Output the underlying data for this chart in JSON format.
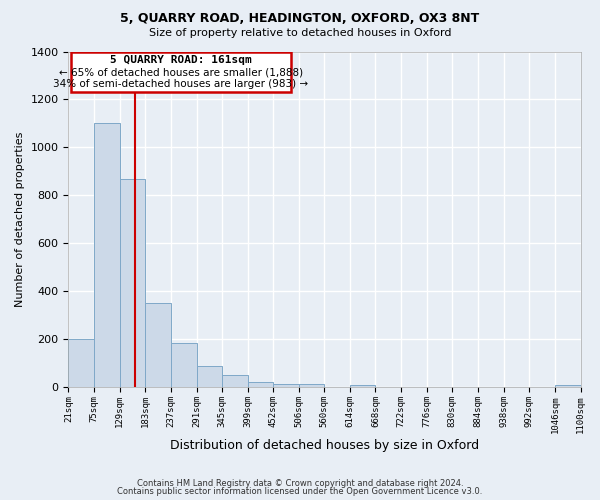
{
  "title1": "5, QUARRY ROAD, HEADINGTON, OXFORD, OX3 8NT",
  "title2": "Size of property relative to detached houses in Oxford",
  "xlabel": "Distribution of detached houses by size in Oxford",
  "ylabel": "Number of detached properties",
  "footer1": "Contains HM Land Registry data © Crown copyright and database right 2024.",
  "footer2": "Contains public sector information licensed under the Open Government Licence v3.0.",
  "bin_edges": [
    21,
    75,
    129,
    183,
    237,
    291,
    345,
    399,
    452,
    506,
    560,
    614,
    668,
    722,
    776,
    830,
    884,
    938,
    992,
    1046,
    1100
  ],
  "bin_counts": [
    200,
    1100,
    870,
    350,
    185,
    90,
    50,
    20,
    15,
    15,
    0,
    10,
    0,
    0,
    0,
    0,
    0,
    0,
    0,
    10
  ],
  "red_line_x": 161,
  "annotation_title": "5 QUARRY ROAD: 161sqm",
  "annotation_line1": "← 65% of detached houses are smaller (1,888)",
  "annotation_line2": "34% of semi-detached houses are larger (983) →",
  "bar_color": "#ccd9e8",
  "bar_edge_color": "#7fa8c8",
  "red_line_color": "#cc0000",
  "background_color": "#e8eef5",
  "plot_bg_color": "#e8eef5",
  "annotation_box_color": "#ffffff",
  "annotation_box_edge": "#cc0000",
  "ylim": [
    0,
    1400
  ],
  "xlim": [
    21,
    1100
  ],
  "yticks": [
    0,
    200,
    400,
    600,
    800,
    1000,
    1200,
    1400
  ]
}
